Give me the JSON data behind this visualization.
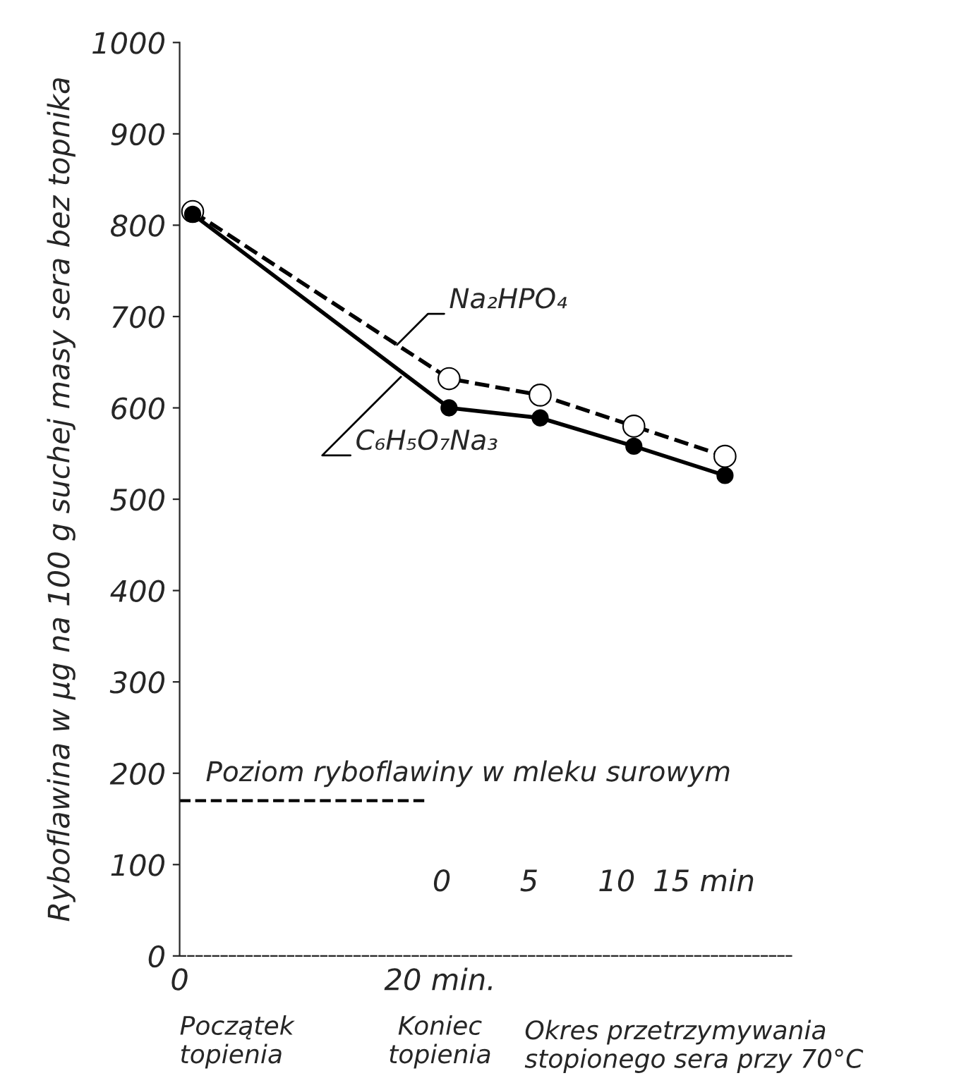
{
  "chart_data": {
    "type": "line",
    "ylabel": "Ryboflawina w µg na 100 g suchej masy sera bez topnika",
    "xlabel": "Okres przetrzymywania\nstopionego sera przy 70°C",
    "x": [
      1,
      20.7,
      27.7,
      34.9,
      41.9
    ],
    "series": [
      {
        "name": "Na₂HPO₄",
        "color": "#000000",
        "line_style": "dashed",
        "values": [
          815,
          632,
          614,
          580,
          547
        ]
      },
      {
        "name": "C₆H₅O₇Na₃",
        "color": "#000000",
        "line_style": "solid",
        "values": [
          812,
          600,
          589,
          558,
          526
        ]
      }
    ],
    "xlim": [
      0,
      47
    ],
    "xticks": [
      0,
      {
        "value": 20,
        "label": "20 min."
      }
    ],
    "x2lim": [
      -15,
      20
    ],
    "x2ticks": [
      0,
      5,
      10,
      {
        "value": 15,
        "label": "15 min"
      }
    ],
    "ylim": [
      0,
      1000
    ],
    "yticks": [
      0,
      100,
      200,
      300,
      400,
      500,
      600,
      700,
      800,
      900,
      1000
    ],
    "ref_lines": [
      {
        "axis": "y",
        "value": 170,
        "label": "Poziom ryboflawiny w mleku surowym",
        "line_style": "dashed",
        "color": "#000000"
      }
    ],
    "annotations": [
      "Początek\ntopienia",
      "Koniec\ntopienia"
    ],
    "marker": "circle",
    "grid": false,
    "legend": false
  }
}
